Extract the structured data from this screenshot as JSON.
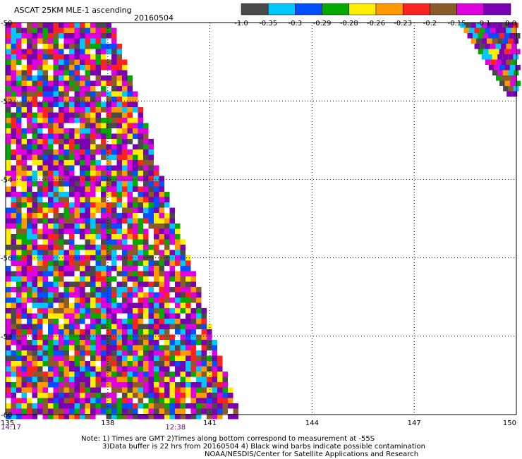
{
  "header": {
    "title": "ASCAT 25KM MLE-1 ascending",
    "date": "20160504"
  },
  "colorbar": {
    "colors": [
      "#4a4a4a",
      "#00c8ff",
      "#0050ff",
      "#00aa00",
      "#ffee00",
      "#ff9900",
      "#ff2020",
      "#8b5a2b",
      "#e000e0",
      "#7a00b4"
    ],
    "labels": [
      "-1.0",
      "-0.35",
      "-0.3",
      "-0.29",
      "-0.28",
      "-0.26",
      "-0.23",
      "-0.2",
      "-0.15",
      "-0.1",
      "0.0"
    ]
  },
  "chart_data": {
    "type": "heatmap",
    "title": "ASCAT 25KM MLE-1 ascending",
    "x_ticks": [
      "135",
      "138",
      "141",
      "144",
      "147",
      "150"
    ],
    "y_ticks": [
      "-50",
      "-52",
      "-54",
      "-56",
      "-58",
      "-60"
    ],
    "xlim": [
      135,
      150
    ],
    "ylim": [
      -60,
      -50
    ],
    "grid": true,
    "time_labels": [
      {
        "lon": 135,
        "text": "14:17"
      },
      {
        "lon": 140,
        "text": "12:38"
      }
    ],
    "value_categories": [
      "-1.0",
      "-0.35",
      "-0.3",
      "-0.29",
      "-0.28",
      "-0.26",
      "-0.23",
      "-0.2",
      "-0.15",
      "-0.1",
      "0.0"
    ],
    "swaths": [
      {
        "name": "west",
        "lon_min": 135,
        "lat_top": -50,
        "lat_bottom": -60,
        "lon_edge_top": 138.1,
        "lon_edge_bottom": 141.8
      },
      {
        "name": "east",
        "lon_edge_top": 149.8,
        "lon_max": 150,
        "lat_top": -50,
        "lat_bottom": -51.8
      }
    ]
  },
  "footer": {
    "note1": "Note: 1) Times are GMT 2)Times along bottom correspond to measurement at -55S",
    "note2": "3)Data buffer is 22 hrs from 20160504 4) Black wind barbs indicate possible contamination",
    "note3": "NOAA/NESDIS/Center for Satellite Applications and Research"
  }
}
